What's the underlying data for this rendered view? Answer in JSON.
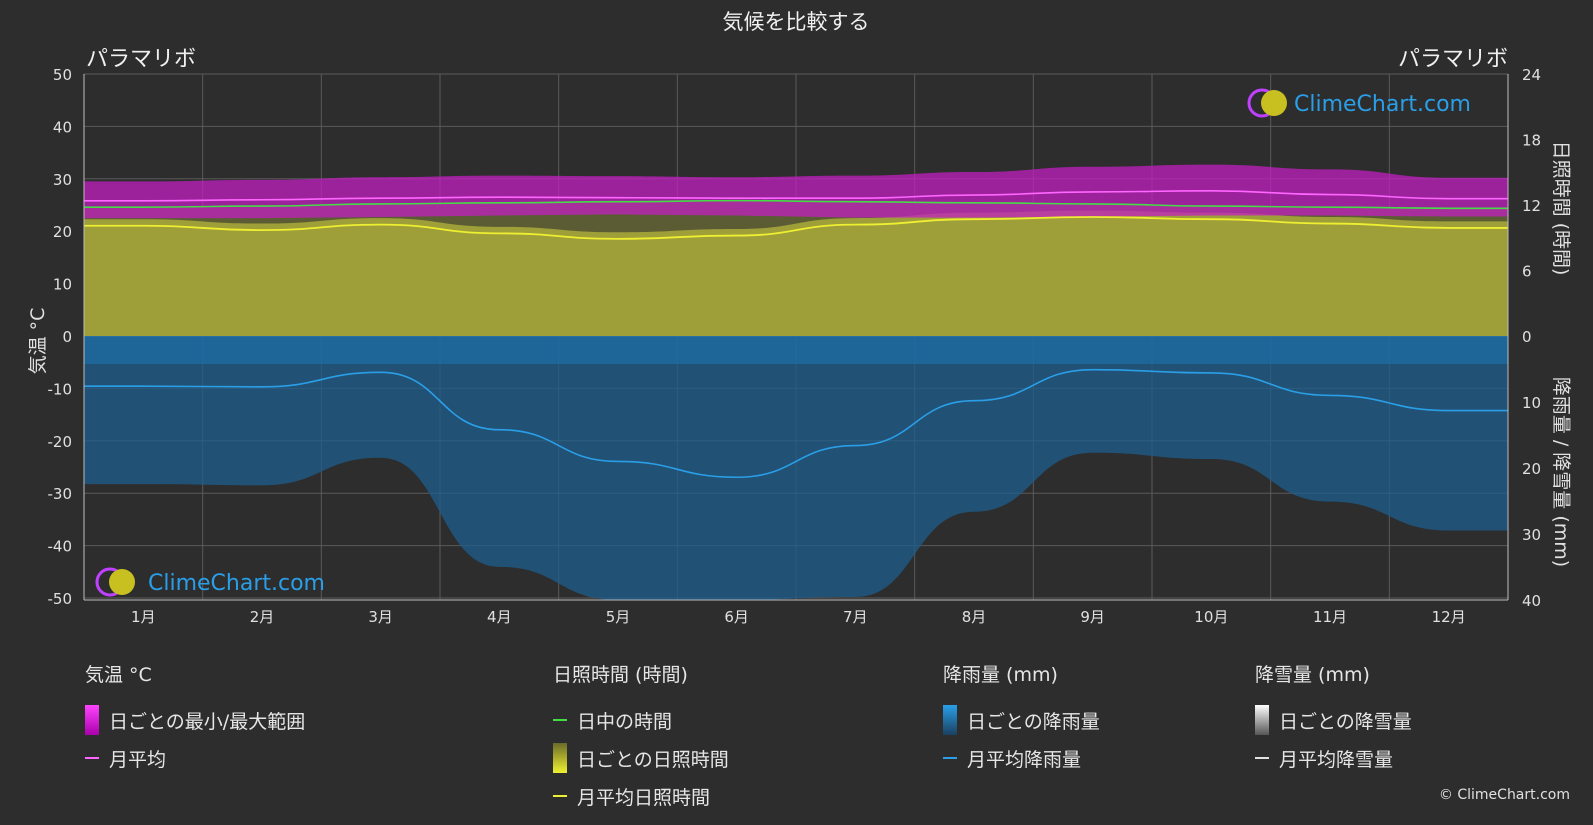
{
  "chart_data": {
    "type": "area",
    "title": "気候を比較する",
    "location_left": "パラマリボ",
    "location_right": "パラマリボ",
    "months": [
      "1月",
      "2月",
      "3月",
      "4月",
      "5月",
      "6月",
      "7月",
      "8月",
      "9月",
      "10月",
      "11月",
      "12月"
    ],
    "left_axis": {
      "label": "気温 °C",
      "min": -50,
      "max": 50,
      "ticks": [
        50,
        40,
        30,
        20,
        10,
        0,
        -10,
        -20,
        -30,
        -40,
        -50
      ]
    },
    "right_axis_top": {
      "label": "日照時間 (時間)",
      "min": 0,
      "max": 24,
      "ticks": [
        24,
        18,
        12,
        6,
        0
      ]
    },
    "right_axis_bottom": {
      "label": "降雨量 / 降雪量 (mm)",
      "min": 0,
      "max": 40,
      "ticks": [
        10,
        20,
        30,
        40
      ]
    },
    "series": [
      {
        "name": "月平均",
        "axis": "temperature",
        "color": "#ff66ff",
        "values": [
          25.8,
          26.0,
          26.3,
          26.5,
          26.4,
          26.3,
          26.3,
          26.9,
          27.5,
          27.7,
          27.0,
          26.2
        ]
      },
      {
        "name": "日ごとの最小/最大範囲",
        "axis": "temperature",
        "color": "#cc22cc",
        "min": [
          22.5,
          22.5,
          22.7,
          23.0,
          23.2,
          23.0,
          22.6,
          22.6,
          22.8,
          23.0,
          23.0,
          22.8
        ],
        "max": [
          29.5,
          29.8,
          30.3,
          30.6,
          30.5,
          30.3,
          30.6,
          31.3,
          32.3,
          32.7,
          31.8,
          30.2
        ]
      },
      {
        "name": "日中の時間",
        "axis": "sunshine",
        "color": "#44dd44",
        "values": [
          11.8,
          11.9,
          12.1,
          12.2,
          12.3,
          12.4,
          12.3,
          12.2,
          12.1,
          11.9,
          11.8,
          11.7
        ]
      },
      {
        "name": "月平均日照時間",
        "axis": "sunshine",
        "color": "#eeee33",
        "values": [
          10.1,
          9.7,
          10.2,
          9.4,
          8.9,
          9.2,
          10.2,
          10.7,
          10.9,
          10.7,
          10.3,
          9.9
        ]
      },
      {
        "name": "月平均降雨量",
        "axis": "rain",
        "color": "#2a9fe8",
        "values": [
          7.6,
          7.7,
          5.5,
          14.2,
          19.0,
          21.4,
          16.6,
          9.8,
          5.1,
          5.6,
          9.0,
          11.3
        ]
      },
      {
        "name": "月平均降雪量",
        "axis": "snow",
        "color": "#e0e0e0",
        "values": [
          0,
          0,
          0,
          0,
          0,
          0,
          0,
          0,
          0,
          0,
          0,
          0
        ]
      }
    ]
  },
  "legend": {
    "temperature": {
      "title": "気温 °C",
      "items": [
        "日ごとの最小/最大範囲",
        "月平均"
      ]
    },
    "sunshine": {
      "title": "日照時間 (時間)",
      "items": [
        "日中の時間",
        "日ごとの日照時間",
        "月平均日照時間"
      ]
    },
    "rain": {
      "title": "降雨量 (mm)",
      "items": [
        "日ごとの降雨量",
        "月平均降雨量"
      ]
    },
    "snow": {
      "title": "降雪量 (mm)",
      "items": [
        "日ごとの降雪量",
        "月平均降雪量"
      ]
    }
  },
  "watermark": "ClimeChart.com",
  "copyright": "© ClimeChart.com",
  "colors": {
    "background": "#2d2d2d",
    "temp_range": "#d020d0",
    "sunshine_fill": "#a8a838",
    "rain_fill": "#1f6fa8",
    "brand": "#2a9fe8"
  }
}
